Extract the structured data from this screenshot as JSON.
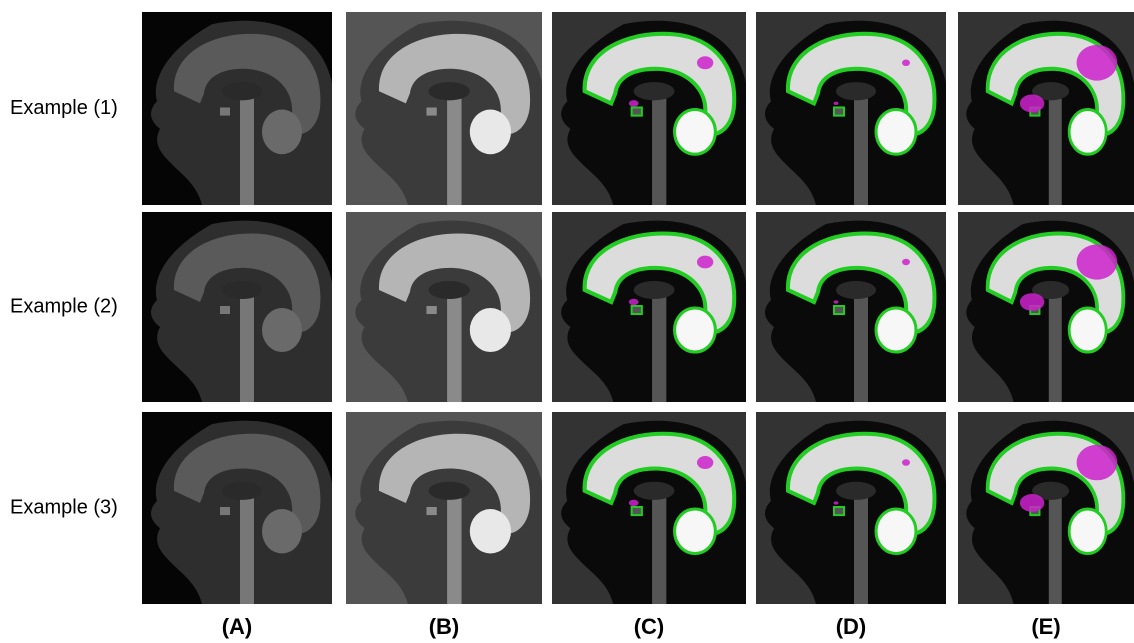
{
  "row_labels": [
    "Example (1)",
    "Example (2)",
    "Example (3)"
  ],
  "column_labels": [
    "(A)",
    "(B)",
    "(C)",
    "(D)",
    "(E)"
  ]
}
